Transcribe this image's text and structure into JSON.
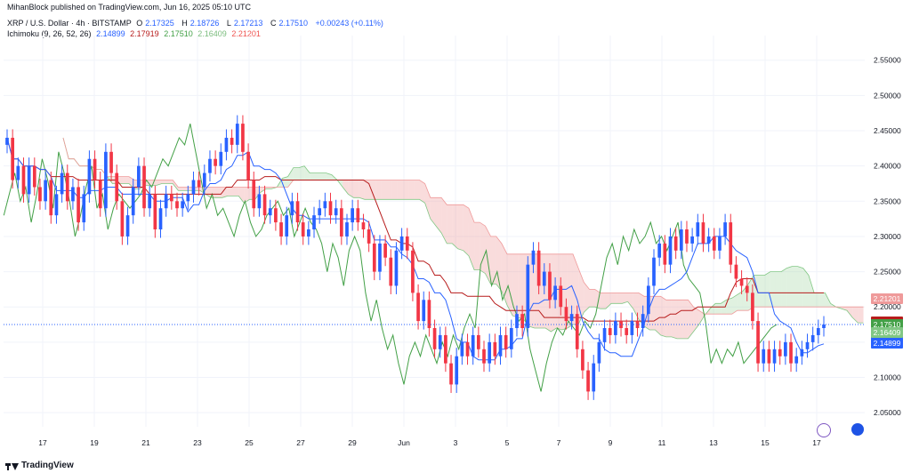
{
  "header": {
    "credit": "MihanBlock published on TradingView.com, Jun 16, 2025 05:10 UTC"
  },
  "legend": {
    "symbol": "XRP / U.S. Dollar · 4h · BITSTAMP",
    "o_label": "O",
    "o_value": "2.17325",
    "h_label": "H",
    "h_value": "2.18726",
    "l_label": "L",
    "l_value": "2.17213",
    "c_label": "C",
    "c_value": "2.17510",
    "change": "+0.00243 (+0.11%)",
    "ichimoku_label": "Ichimoku (9, 26, 52, 26)",
    "ichimoku_values": [
      "2.14899",
      "2.17919",
      "2.17510",
      "2.16409",
      "2.21201"
    ]
  },
  "footer": {
    "brand": "TradingView"
  },
  "colors": {
    "up": "#2962ff",
    "down": "#f23645",
    "conversion": "#2962ff",
    "base": "#b71c1c",
    "lagging": "#43a047",
    "cloud_bull": "#a5d6a7",
    "cloud_bear": "#ef9a9a",
    "lead_a": "#81c784",
    "lead_b": "#ef9a9a"
  },
  "chart_data": {
    "type": "candlestick",
    "symbol": "XRPUSD",
    "timeframe": "4h",
    "ylim": [
      2.03,
      2.585
    ],
    "y_ticks": [
      "2.55000",
      "2.50000",
      "2.45000",
      "2.40000",
      "2.35000",
      "2.30000",
      "2.25000",
      "2.20000",
      "2.15000",
      "2.10000",
      "2.05000"
    ],
    "x_ticks": [
      "17",
      "19",
      "21",
      "23",
      "25",
      "27",
      "29",
      "Jun",
      "3",
      "5",
      "7",
      "9",
      "11",
      "13",
      "15",
      "17"
    ],
    "price_tags": [
      {
        "value": "2.21201",
        "color": "#ef9a9a"
      },
      {
        "value": "2.17919",
        "color": "#b71c1c"
      },
      {
        "value": "2.17510",
        "sub": "02:49:26",
        "color": "#2962ff"
      },
      {
        "value": "2.17510",
        "color": "#43a047"
      },
      {
        "value": "2.16409",
        "color": "#81c784"
      },
      {
        "value": "2.14899",
        "color": "#2962ff"
      }
    ],
    "closes": [
      2.44,
      2.38,
      2.4,
      2.36,
      2.4,
      2.37,
      2.35,
      2.38,
      2.33,
      2.36,
      2.39,
      2.35,
      2.37,
      2.32,
      2.36,
      2.41,
      2.38,
      2.34,
      2.42,
      2.39,
      2.35,
      2.3,
      2.33,
      2.37,
      2.4,
      2.34,
      2.36,
      2.31,
      2.34,
      2.36,
      2.35,
      2.34,
      2.35,
      2.36,
      2.38,
      2.37,
      2.39,
      2.41,
      2.4,
      2.42,
      2.44,
      2.43,
      2.46,
      2.42,
      2.38,
      2.34,
      2.36,
      2.33,
      2.34,
      2.32,
      2.3,
      2.33,
      2.35,
      2.32,
      2.3,
      2.31,
      2.33,
      2.34,
      2.35,
      2.33,
      2.34,
      2.3,
      2.32,
      2.34,
      2.32,
      2.31,
      2.29,
      2.25,
      2.29,
      2.27,
      2.23,
      2.28,
      2.3,
      2.28,
      2.22,
      2.18,
      2.21,
      2.17,
      2.14,
      2.16,
      2.12,
      2.09,
      2.13,
      2.15,
      2.13,
      2.16,
      2.14,
      2.12,
      2.15,
      2.13,
      2.16,
      2.14,
      2.17,
      2.19,
      2.17,
      2.26,
      2.28,
      2.23,
      2.25,
      2.21,
      2.23,
      2.2,
      2.18,
      2.19,
      2.14,
      2.11,
      2.08,
      2.12,
      2.15,
      2.17,
      2.16,
      2.18,
      2.17,
      2.16,
      2.18,
      2.17,
      2.19,
      2.23,
      2.27,
      2.29,
      2.26,
      2.3,
      2.28,
      2.31,
      2.29,
      2.3,
      2.32,
      2.29,
      2.3,
      2.28,
      2.3,
      2.32,
      2.26,
      2.24,
      2.23,
      2.22,
      2.18,
      2.12,
      2.14,
      2.12,
      2.14,
      2.13,
      2.15,
      2.12,
      2.13,
      2.14,
      2.15,
      2.16,
      2.17,
      2.175
    ],
    "ranges": {
      "tenkan": "blue",
      "kijun": "red",
      "chikou": "green",
      "senkou_a": "green",
      "senkou_b": "red"
    }
  }
}
